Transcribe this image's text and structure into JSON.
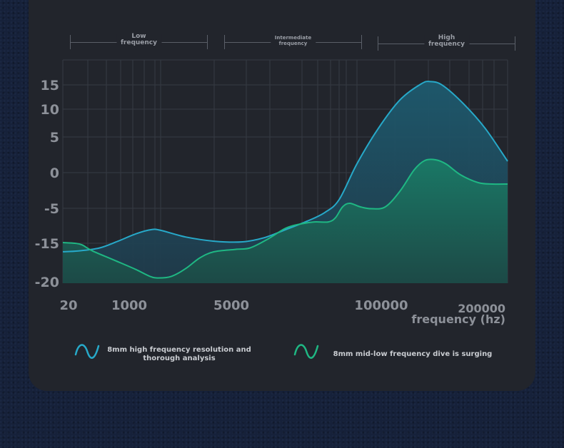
{
  "bands": [
    {
      "label_line1": "Low",
      "label_line2": "frequency"
    },
    {
      "label_line1": "Intermediate",
      "label_line2": "frequency"
    },
    {
      "label_line1": "High",
      "label_line2": "frequency"
    }
  ],
  "colors": {
    "series_high": "#27a9c9",
    "series_midlow": "#1fb783",
    "grid": "#363a43",
    "card": "#22252c"
  },
  "chart_data": {
    "type": "area",
    "xlabel": "frequency (hz)",
    "ylabel": "",
    "x_ticks": [
      "20",
      "1000",
      "5000",
      "100000",
      "200000"
    ],
    "y_ticks": [
      15,
      10,
      5,
      0,
      -5,
      -15,
      -20
    ],
    "ylim": [
      -20,
      18
    ],
    "x_domain": "normalized position along frequency axis (0 = 20 hz, 1 = right end)",
    "grid": true,
    "legend_position": "bottom",
    "series": [
      {
        "name": "8mm high frequency resolution and thorough analysis",
        "color": "#27a9c9",
        "x": [
          0,
          0.035,
          0.083,
          0.124,
          0.164,
          0.199,
          0.22,
          0.276,
          0.34,
          0.404,
          0.453,
          0.501,
          0.549,
          0.589,
          0.621,
          0.661,
          0.709,
          0.758,
          0.806,
          0.827,
          0.854,
          0.902,
          0.95,
          1.0
        ],
        "y": [
          -16.1,
          -16.0,
          -15.6,
          -14.4,
          -12.3,
          -11.1,
          -11.3,
          -13.2,
          -14.4,
          -14.6,
          -13.4,
          -11.1,
          -8.7,
          -6.2,
          -3.8,
          1.2,
          6.5,
          11.9,
          15.2,
          15.6,
          14.9,
          11.0,
          6.5,
          1.6
        ]
      },
      {
        "name": "8mm mid-low frequency dive is surging",
        "color": "#1fb783",
        "x": [
          0,
          0.027,
          0.043,
          0.067,
          0.116,
          0.164,
          0.196,
          0.215,
          0.244,
          0.276,
          0.308,
          0.34,
          0.388,
          0.421,
          0.461,
          0.501,
          0.533,
          0.565,
          0.597,
          0.613,
          0.629,
          0.645,
          0.669,
          0.693,
          0.725,
          0.758,
          0.79,
          0.814,
          0.838,
          0.862,
          0.894,
          0.934,
          0.966,
          1.0
        ],
        "y": [
          -14.8,
          -15.0,
          -15.2,
          -16.0,
          -17.2,
          -18.4,
          -19.3,
          -19.5,
          -19.3,
          -18.3,
          -16.9,
          -16.1,
          -15.8,
          -15.6,
          -13.8,
          -10.7,
          -9.5,
          -8.9,
          -8.9,
          -7.7,
          -4.8,
          -4.3,
          -4.8,
          -5.1,
          -4.8,
          -2.6,
          0.4,
          1.7,
          1.8,
          1.2,
          -0.3,
          -1.4,
          -1.6,
          -1.6
        ]
      }
    ]
  }
}
